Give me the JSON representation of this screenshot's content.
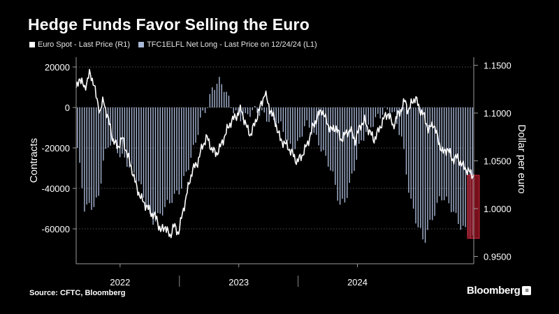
{
  "title": "Hedge Funds Favor Selling the Euro",
  "source": "Source: CFTC, Bloomberg",
  "brand": "Bloomberg",
  "legend": {
    "spot": "Euro Spot - Last Price (R1)",
    "net": "TFC1ELFL Net Long - Last Price on 12/24/24 (L1)"
  },
  "colors": {
    "bars": "#a9b8d6",
    "line": "#ffffff",
    "highlight": "#a01424",
    "grid": "#6a6a6a"
  },
  "chart_data": {
    "type": "bar+line",
    "title": "Hedge Funds Favor Selling the Euro",
    "x_range": [
      2021.63,
      2024.98
    ],
    "x_ticks": [
      {
        "label": "2022",
        "x": 2022.0
      },
      {
        "label": "2023",
        "x": 2023.0
      },
      {
        "label": "2024",
        "x": 2024.0
      }
    ],
    "x_separators": [
      2022.5,
      2023.5
    ],
    "left_axis": {
      "label": "Contracts",
      "range": [
        -73000,
        25000
      ],
      "ticks": [
        20000,
        0,
        -20000,
        -40000,
        -60000
      ],
      "tick_labels": [
        "20000",
        "0",
        "-20000",
        "-40000",
        "-60000"
      ]
    },
    "right_axis": {
      "label": "Dollar per euro",
      "range": [
        0.95,
        1.165
      ],
      "ticks": [
        1.15,
        1.1,
        1.05,
        1.0,
        0.95
      ],
      "tick_labels": [
        "1.1500",
        "1.1000",
        "1.0500",
        "1.0000",
        "0.9500"
      ]
    },
    "highlight_range_usd": [
      0.969,
      1.035
    ],
    "series": [
      {
        "name": "TFC1ELFL Net Long - Last Price on 12/24/24 (L1)",
        "axis": "left",
        "kind": "bar",
        "keypoints": [
          [
            2021.64,
            -20000
          ],
          [
            2021.7,
            -51000
          ],
          [
            2021.76,
            -49000
          ],
          [
            2021.82,
            -43000
          ],
          [
            2021.86,
            -25000
          ],
          [
            2021.92,
            -18000
          ],
          [
            2021.98,
            -22000
          ],
          [
            2022.05,
            -25000
          ],
          [
            2022.1,
            -30000
          ],
          [
            2022.15,
            -37000
          ],
          [
            2022.2,
            -45000
          ],
          [
            2022.27,
            -55000
          ],
          [
            2022.35,
            -52000
          ],
          [
            2022.42,
            -48000
          ],
          [
            2022.5,
            -40000
          ],
          [
            2022.58,
            -28000
          ],
          [
            2022.64,
            -18000
          ],
          [
            2022.68,
            -6000
          ],
          [
            2022.73,
            1000
          ],
          [
            2022.78,
            11000
          ],
          [
            2022.83,
            13000
          ],
          [
            2022.88,
            8000
          ],
          [
            2022.93,
            1000
          ],
          [
            2022.98,
            -2000
          ],
          [
            2023.05,
            -5000
          ],
          [
            2023.12,
            -3000
          ],
          [
            2023.2,
            -2000
          ],
          [
            2023.28,
            -6000
          ],
          [
            2023.35,
            -10000
          ],
          [
            2023.43,
            -19000
          ],
          [
            2023.5,
            -17000
          ],
          [
            2023.56,
            -9000
          ],
          [
            2023.62,
            -13000
          ],
          [
            2023.68,
            -17000
          ],
          [
            2023.75,
            -26000
          ],
          [
            2023.8,
            -36000
          ],
          [
            2023.85,
            -50000
          ],
          [
            2023.9,
            -45000
          ],
          [
            2023.96,
            -31000
          ],
          [
            2024.02,
            -19000
          ],
          [
            2024.1,
            -11000
          ],
          [
            2024.16,
            -4000
          ],
          [
            2024.22,
            -1000
          ],
          [
            2024.3,
            -4000
          ],
          [
            2024.38,
            -16000
          ],
          [
            2024.44,
            -43000
          ],
          [
            2024.5,
            -58000
          ],
          [
            2024.56,
            -68000
          ],
          [
            2024.62,
            -55000
          ],
          [
            2024.7,
            -43000
          ],
          [
            2024.78,
            -50000
          ],
          [
            2024.85,
            -56000
          ],
          [
            2024.92,
            -60000
          ],
          [
            2024.97,
            -66000
          ]
        ]
      },
      {
        "name": "Euro Spot - Last Price (R1)",
        "axis": "right",
        "kind": "line",
        "keypoints": [
          [
            2021.63,
            1.124
          ],
          [
            2021.66,
            1.138
          ],
          [
            2021.7,
            1.125
          ],
          [
            2021.74,
            1.141
          ],
          [
            2021.78,
            1.132
          ],
          [
            2021.8,
            1.115
          ],
          [
            2021.83,
            1.102
          ],
          [
            2021.86,
            1.113
          ],
          [
            2021.9,
            1.094
          ],
          [
            2021.94,
            1.072
          ],
          [
            2021.98,
            1.064
          ],
          [
            2022.02,
            1.074
          ],
          [
            2022.06,
            1.057
          ],
          [
            2022.1,
            1.041
          ],
          [
            2022.14,
            1.022
          ],
          [
            2022.18,
            1.01
          ],
          [
            2022.22,
            1.003
          ],
          [
            2022.27,
            0.994
          ],
          [
            2022.31,
            0.99
          ],
          [
            2022.34,
            0.976
          ],
          [
            2022.38,
            0.982
          ],
          [
            2022.42,
            0.97
          ],
          [
            2022.45,
            0.983
          ],
          [
            2022.49,
            0.974
          ],
          [
            2022.53,
            0.997
          ],
          [
            2022.57,
            1.02
          ],
          [
            2022.61,
            1.041
          ],
          [
            2022.65,
            1.047
          ],
          [
            2022.69,
            1.064
          ],
          [
            2022.73,
            1.075
          ],
          [
            2022.77,
            1.063
          ],
          [
            2022.81,
            1.057
          ],
          [
            2022.85,
            1.066
          ],
          [
            2022.9,
            1.082
          ],
          [
            2022.94,
            1.092
          ],
          [
            2022.98,
            1.097
          ],
          [
            2023.02,
            1.104
          ],
          [
            2023.06,
            1.087
          ],
          [
            2023.1,
            1.077
          ],
          [
            2023.14,
            1.091
          ],
          [
            2023.18,
            1.106
          ],
          [
            2023.22,
            1.121
          ],
          [
            2023.26,
            1.105
          ],
          [
            2023.3,
            1.094
          ],
          [
            2023.35,
            1.072
          ],
          [
            2023.4,
            1.067
          ],
          [
            2023.45,
            1.058
          ],
          [
            2023.49,
            1.049
          ],
          [
            2023.53,
            1.055
          ],
          [
            2023.58,
            1.068
          ],
          [
            2023.62,
            1.084
          ],
          [
            2023.66,
            1.095
          ],
          [
            2023.7,
            1.104
          ],
          [
            2023.74,
            1.091
          ],
          [
            2023.78,
            1.082
          ],
          [
            2023.82,
            1.085
          ],
          [
            2023.86,
            1.072
          ],
          [
            2023.9,
            1.078
          ],
          [
            2023.94,
            1.083
          ],
          [
            2023.98,
            1.071
          ],
          [
            2024.02,
            1.086
          ],
          [
            2024.06,
            1.092
          ],
          [
            2024.1,
            1.081
          ],
          [
            2024.14,
            1.072
          ],
          [
            2024.18,
            1.082
          ],
          [
            2024.22,
            1.094
          ],
          [
            2024.26,
            1.1
          ],
          [
            2024.3,
            1.086
          ],
          [
            2024.34,
            1.098
          ],
          [
            2024.38,
            1.106
          ],
          [
            2024.4,
            1.114
          ],
          [
            2024.43,
            1.101
          ],
          [
            2024.46,
            1.112
          ],
          [
            2024.49,
            1.116
          ],
          [
            2024.52,
            1.105
          ],
          [
            2024.56,
            1.097
          ],
          [
            2024.6,
            1.082
          ],
          [
            2024.64,
            1.09
          ],
          [
            2024.68,
            1.072
          ],
          [
            2024.72,
            1.058
          ],
          [
            2024.76,
            1.063
          ],
          [
            2024.8,
            1.051
          ],
          [
            2024.84,
            1.054
          ],
          [
            2024.88,
            1.046
          ],
          [
            2024.92,
            1.041
          ],
          [
            2024.96,
            1.036
          ],
          [
            2024.98,
            1.035
          ]
        ]
      }
    ]
  }
}
